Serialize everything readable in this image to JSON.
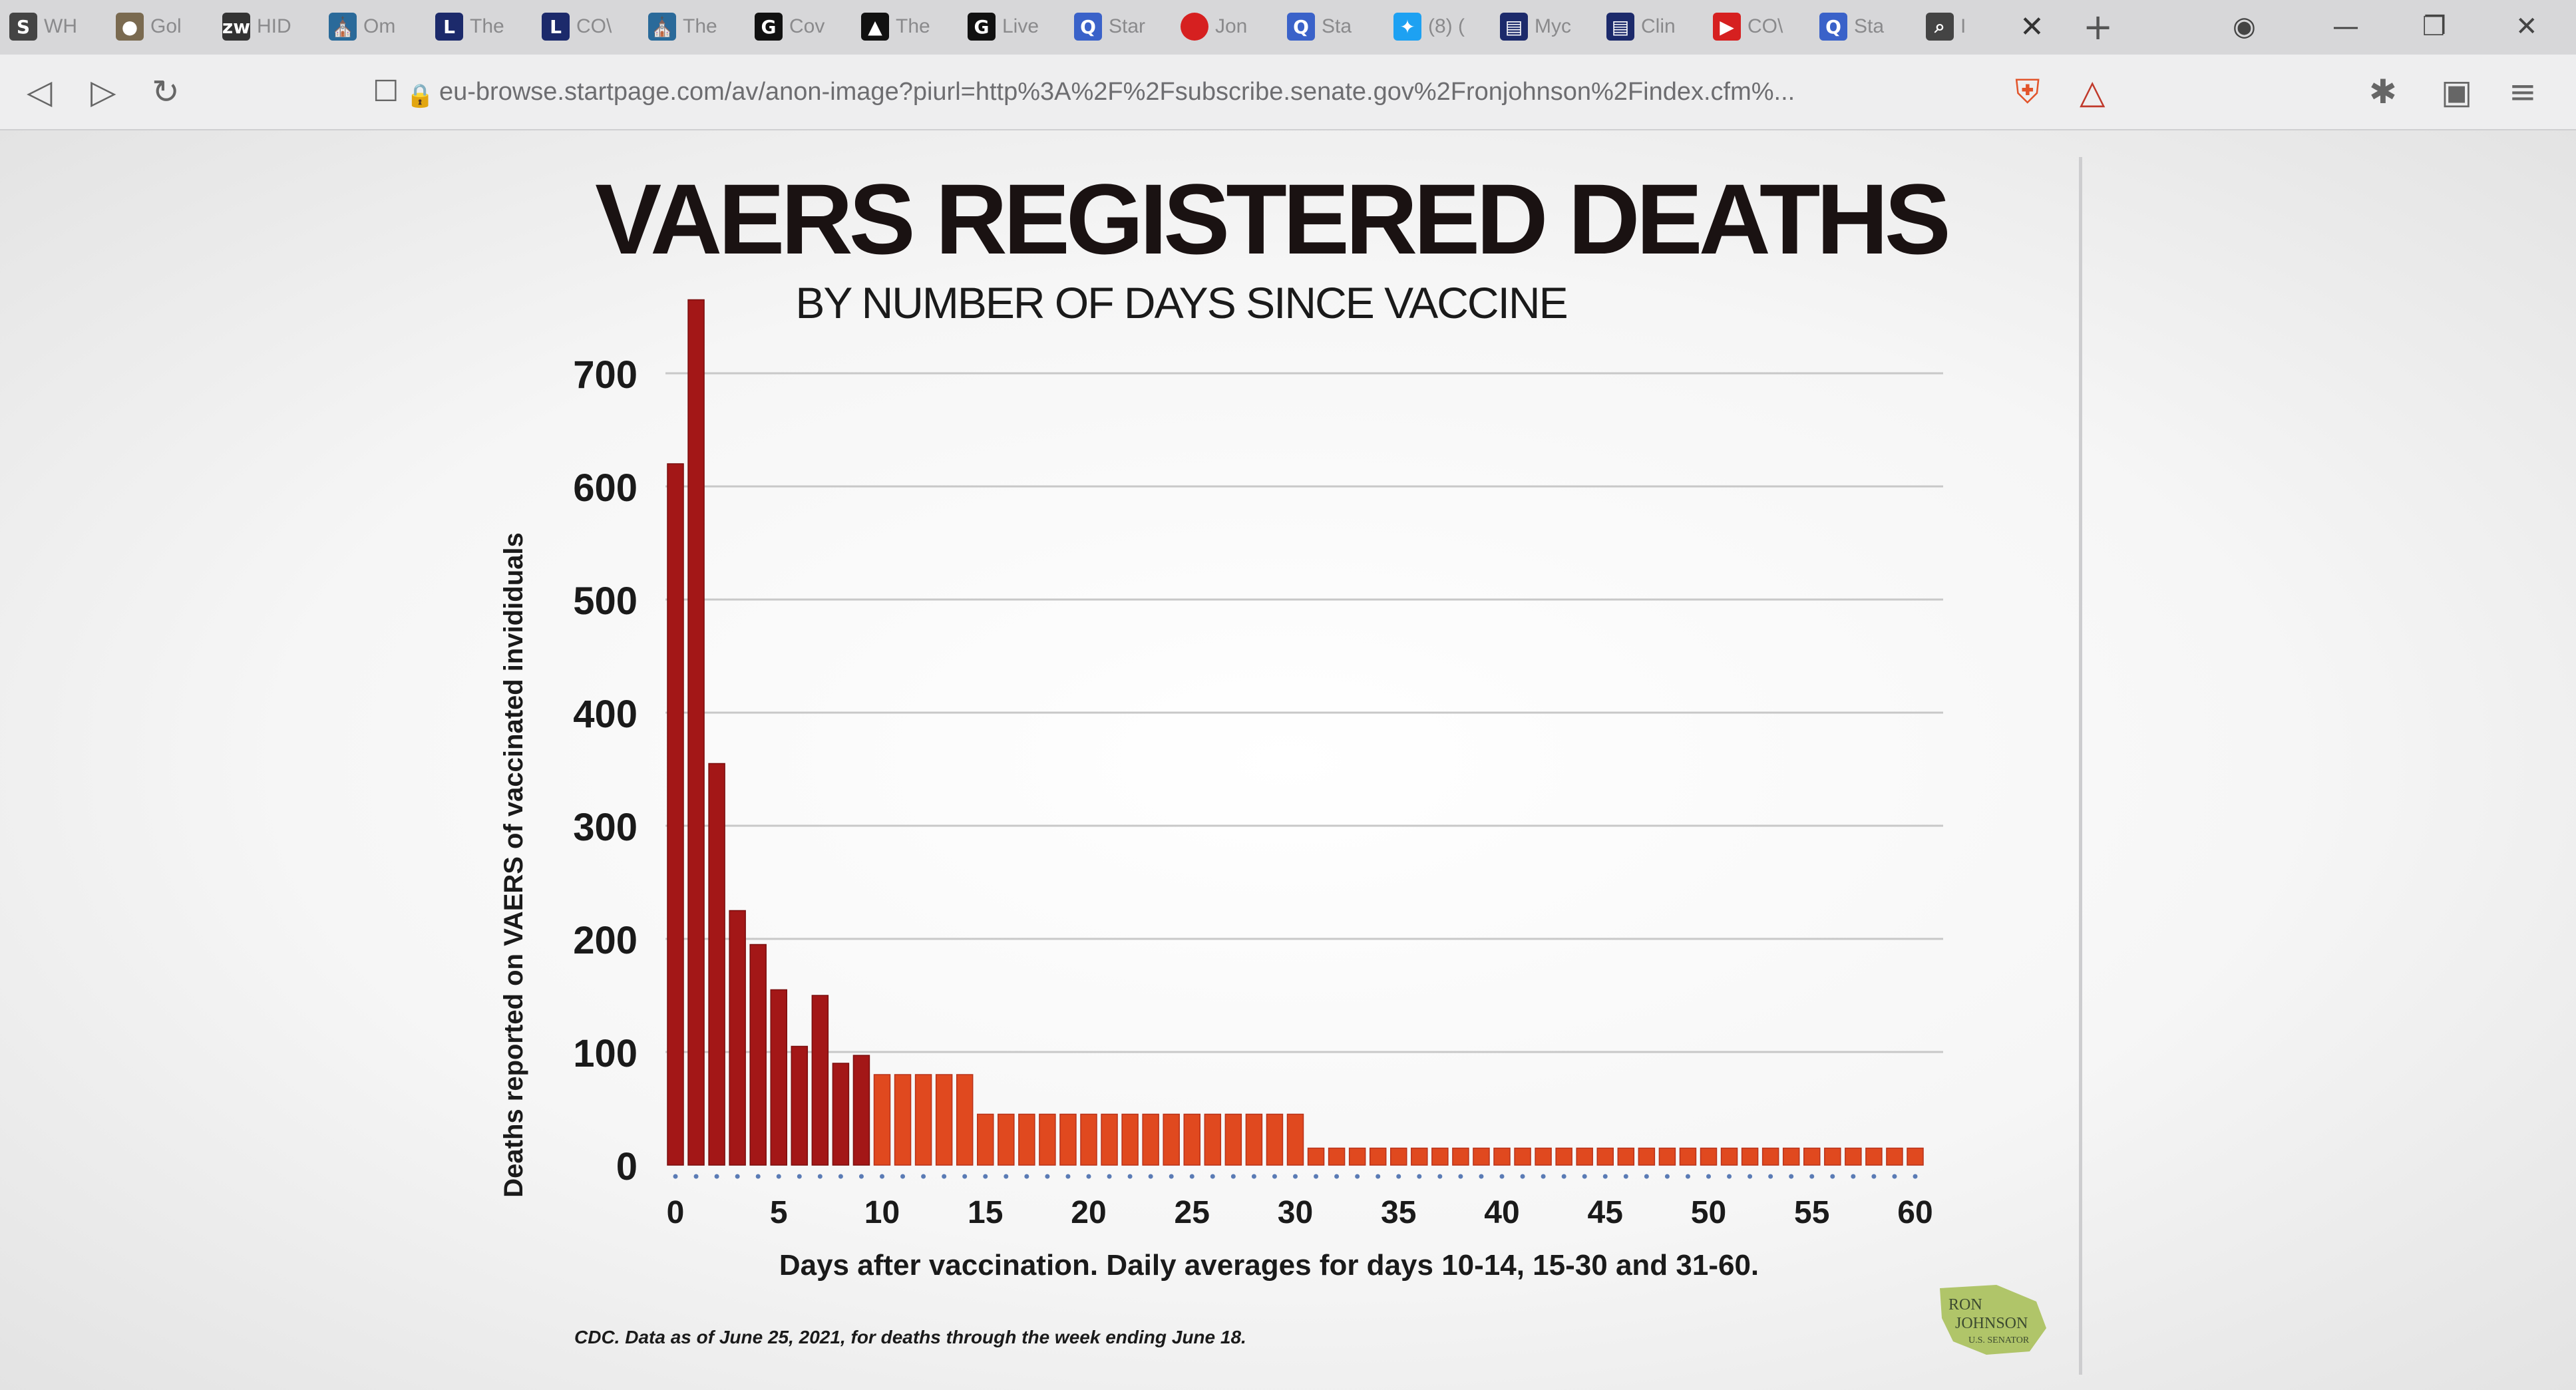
{
  "browser": {
    "tabs": [
      {
        "label": "WH",
        "icon": "s-icon",
        "color": "#444"
      },
      {
        "label": "Gol",
        "icon": "avatar-icon",
        "color": "#7a6a50"
      },
      {
        "label": "HID",
        "icon": "zw-icon",
        "color": "#333"
      },
      {
        "label": "Om",
        "icon": "hospital-icon",
        "color": "#2a6a9a"
      },
      {
        "label": "The",
        "icon": "l-icon",
        "color": "#1c2a6b"
      },
      {
        "label": "CO\\",
        "icon": "l-icon",
        "color": "#1c2a6b"
      },
      {
        "label": "The",
        "icon": "hospital-icon",
        "color": "#2a6a9a"
      },
      {
        "label": "Cov",
        "icon": "g-circle-icon",
        "color": "#111"
      },
      {
        "label": "The",
        "icon": "car-icon",
        "color": "#111"
      },
      {
        "label": "Live",
        "icon": "g-circle-icon",
        "color": "#111"
      },
      {
        "label": "Star",
        "icon": "search-q-icon",
        "color": "#3a62c9"
      },
      {
        "label": "Jon",
        "icon": "red-dot-icon",
        "color": "#d62020"
      },
      {
        "label": "Sta",
        "icon": "search-q-icon",
        "color": "#3a62c9"
      },
      {
        "label": "(8) (",
        "icon": "twitter-icon",
        "color": "#1da1f2"
      },
      {
        "label": "Myc",
        "icon": "ibm-icon",
        "color": "#1c2a6b"
      },
      {
        "label": "Clin",
        "icon": "ibm-icon",
        "color": "#1c2a6b"
      },
      {
        "label": "CO\\",
        "icon": "youtube-icon",
        "color": "#d62020"
      },
      {
        "label": "Sta",
        "icon": "search-q-icon",
        "color": "#3a62c9"
      },
      {
        "label": "I",
        "icon": "search-icon",
        "color": "#444"
      }
    ],
    "url": "eu-browse.startpage.com/av/anon-image?piurl=http%3A%2F%2Fsubscribe.senate.gov%2Fronjohnson%2Findex.cfm%..."
  },
  "chart_data": {
    "type": "bar",
    "title": "VAERS REGISTERED DEATHS",
    "subtitle": "BY NUMBER OF DAYS SINCE VACCINE",
    "ylabel": "Deaths reported on VAERS of vaccinated invididuals",
    "xlabel": "Days after vaccination. Daily averages for days 10-14, 15-30 and 31-60.",
    "source": "CDC. Data as of June 25, 2021, for deaths through the week ending June 18.",
    "ylim": [
      0,
      780
    ],
    "yticks": [
      0,
      100,
      200,
      300,
      400,
      500,
      600,
      700
    ],
    "xticks": [
      0,
      5,
      10,
      15,
      20,
      25,
      30,
      35,
      40,
      45,
      50,
      55,
      60
    ],
    "x": [
      0,
      1,
      2,
      3,
      4,
      5,
      6,
      7,
      8,
      9,
      10,
      11,
      12,
      13,
      14,
      15,
      16,
      17,
      18,
      19,
      20,
      21,
      22,
      23,
      24,
      25,
      26,
      27,
      28,
      29,
      30,
      31,
      32,
      33,
      34,
      35,
      36,
      37,
      38,
      39,
      40,
      41,
      42,
      43,
      44,
      45,
      46,
      47,
      48,
      49,
      50,
      51,
      52,
      53,
      54,
      55,
      56,
      57,
      58,
      59,
      60
    ],
    "values": [
      620,
      765,
      355,
      225,
      195,
      155,
      105,
      150,
      90,
      97,
      80,
      80,
      80,
      80,
      80,
      45,
      45,
      45,
      45,
      45,
      45,
      45,
      45,
      45,
      45,
      45,
      45,
      45,
      45,
      45,
      45,
      15,
      15,
      15,
      15,
      15,
      15,
      15,
      15,
      15,
      15,
      15,
      15,
      15,
      15,
      15,
      15,
      15,
      15,
      15,
      15,
      15,
      15,
      15,
      15,
      15,
      15,
      15,
      15,
      15,
      15
    ],
    "colors": {
      "daily": "#a31717",
      "average": "#e0491f",
      "axis_dots": "#5a7bb5",
      "grid": "#c8c8c8"
    },
    "grid": true,
    "logo_text": [
      "RON",
      "JOHNSON",
      "U.S. SENATOR"
    ]
  }
}
